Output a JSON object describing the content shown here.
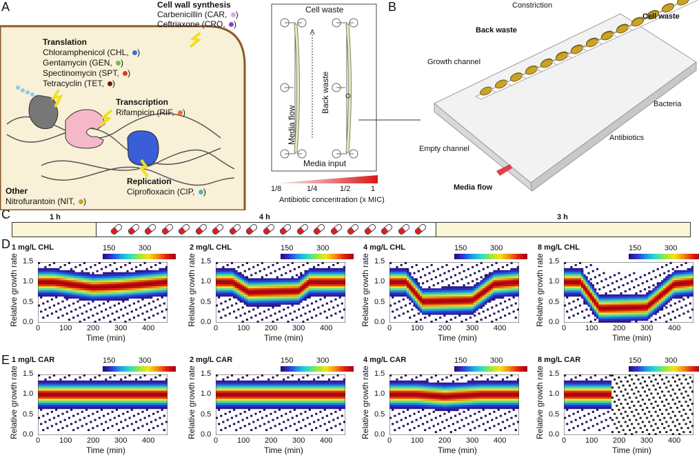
{
  "panels": {
    "a": "A",
    "b": "B",
    "c": "C",
    "d": "D",
    "e": "E"
  },
  "panelA": {
    "cell_wall": {
      "title": "Cell wall synthesis",
      "items": [
        {
          "text": "Carbenicillin (CAR,",
          "color": "#e0a3f0"
        },
        {
          "text": "Ceftriaxone (CRO,",
          "color": "#8a3fc8"
        }
      ]
    },
    "translation": {
      "title": "Translation",
      "items": [
        {
          "text": "Chloramphenicol (CHL,",
          "color": "#3b6fd8"
        },
        {
          "text": "Gentamycin (GEN,",
          "color": "#6cc04a"
        },
        {
          "text": "Spectinomycin (SPT,",
          "color": "#d83a2a"
        },
        {
          "text": "Tetracyclin (TET,",
          "color": "#6b1a10"
        }
      ]
    },
    "transcription": {
      "title": "Transcription",
      "items": [
        {
          "text": "Rifampicin (RIF,",
          "color": "#f07030"
        }
      ]
    },
    "replication": {
      "title": "Replication",
      "items": [
        {
          "text": "Ciprofloxacin (CIP,",
          "color": "#4ab8c8"
        }
      ]
    },
    "other": {
      "title": "Other",
      "items": [
        {
          "text": "Nitrofurantoin (NIT,",
          "color": "#c8a030"
        }
      ]
    },
    "close": ")"
  },
  "device": {
    "cell_waste": "Cell waste",
    "back_waste": "Back waste",
    "media_flow": "Media flow",
    "media_input": "Media input",
    "conc_ticks": [
      "1/8",
      "1/4",
      "1/2",
      "1"
    ],
    "conc_label": "Antibiotic concentration (x MIC)"
  },
  "panelB": {
    "constriction": "Constriction",
    "cell_waste": "Cell waste",
    "back_waste": "Back waste",
    "growth_channel": "Growth channel",
    "bacteria": "Bacteria",
    "antibiotics": "Antibiotics",
    "empty_channel": "Empty channel",
    "media_flow": "Media flow"
  },
  "timeline": {
    "seg1": "1 h",
    "seg2": "4 h",
    "seg3": "3 h"
  },
  "colorbar": {
    "ticks": [
      "150",
      "300"
    ]
  },
  "axes": {
    "ylabel": "Relative growth rate",
    "xlabel": "Time (min)",
    "yticks": [
      "0.0",
      "0.5",
      "1.0",
      "1.5"
    ],
    "xticks": [
      "0",
      "100",
      "200",
      "300",
      "400"
    ]
  },
  "chart_data": [
    {
      "type": "heatmap",
      "title": "1 mg/L CHL",
      "xlim": [
        0,
        470
      ],
      "ylim": [
        0,
        1.5
      ],
      "x": [
        0,
        60,
        200,
        300,
        470
      ],
      "y": [
        1.0,
        1.0,
        0.87,
        0.9,
        1.0
      ]
    },
    {
      "type": "heatmap",
      "title": "2 mg/L CHL",
      "xlim": [
        0,
        470
      ],
      "ylim": [
        0,
        1.5
      ],
      "x": [
        0,
        60,
        120,
        300,
        340,
        470
      ],
      "y": [
        1.0,
        1.0,
        0.75,
        0.78,
        1.0,
        1.0
      ]
    },
    {
      "type": "heatmap",
      "title": "4 mg/L CHL",
      "xlim": [
        0,
        470
      ],
      "ylim": [
        0,
        1.5
      ],
      "x": [
        0,
        60,
        120,
        300,
        380,
        470
      ],
      "y": [
        1.0,
        1.0,
        0.52,
        0.55,
        0.95,
        1.0
      ]
    },
    {
      "type": "heatmap",
      "title": "8 mg/L CHL",
      "xlim": [
        0,
        470
      ],
      "ylim": [
        0,
        1.5
      ],
      "x": [
        0,
        60,
        130,
        300,
        400,
        470
      ],
      "y": [
        1.0,
        1.0,
        0.35,
        0.38,
        0.95,
        1.0
      ]
    },
    {
      "type": "heatmap",
      "title": "1 mg/L CAR",
      "xlim": [
        0,
        470
      ],
      "ylim": [
        0,
        1.5
      ],
      "x": [
        0,
        470
      ],
      "y": [
        1.0,
        1.0
      ]
    },
    {
      "type": "heatmap",
      "title": "2 mg/L CAR",
      "xlim": [
        0,
        470
      ],
      "ylim": [
        0,
        1.5
      ],
      "x": [
        0,
        470
      ],
      "y": [
        1.0,
        1.0
      ]
    },
    {
      "type": "heatmap",
      "title": "4 mg/L CAR",
      "xlim": [
        0,
        470
      ],
      "ylim": [
        0,
        1.5
      ],
      "x": [
        0,
        100,
        200,
        330,
        470
      ],
      "y": [
        1.0,
        1.0,
        0.95,
        1.0,
        1.0
      ]
    },
    {
      "type": "heatmap",
      "title": "8 mg/L CAR",
      "xlim": [
        0,
        470
      ],
      "ylim": [
        0,
        1.5
      ],
      "x": [
        0,
        90,
        170
      ],
      "y": [
        1.0,
        1.0,
        1.0
      ]
    }
  ]
}
